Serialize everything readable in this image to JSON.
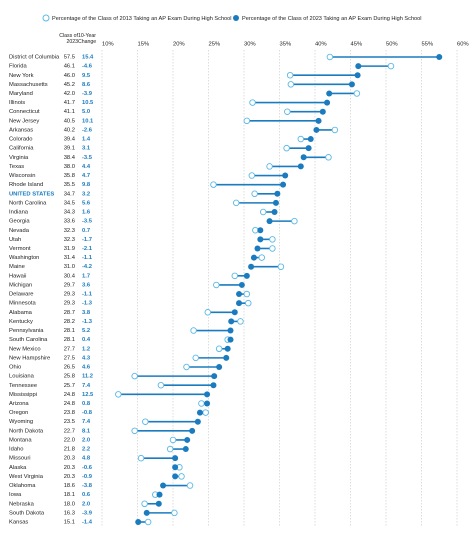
{
  "chart_data": {
    "type": "dumbbell",
    "column_headers": [
      "Class of 2023",
      "10-Year Change"
    ],
    "categories": [
      "District of Columbia",
      "Florida",
      "New York",
      "Massachusetts",
      "Maryland",
      "Illinois",
      "Connecticut",
      "New Jersey",
      "Arkansas",
      "Colorado",
      "California",
      "Virginia",
      "Texas",
      "Wisconsin",
      "Rhode Island",
      "UNITED STATES",
      "North Carolina",
      "Indiana",
      "Georgia",
      "Nevada",
      "Utah",
      "Vermont",
      "Washington",
      "Maine",
      "Hawaii",
      "Michigan",
      "Delaware",
      "Minnesota",
      "Alabama",
      "Kentucky",
      "Pennsylvania",
      "South Carolina",
      "New Mexico",
      "New Hampshire",
      "Ohio",
      "Louisiana",
      "Tennessee",
      "Mississippi",
      "Arizona",
      "Oregon",
      "Wyoming",
      "North Dakota",
      "Montana",
      "Idaho",
      "Missouri",
      "Alaska",
      "West Virginia",
      "Oklahoma",
      "Iowa",
      "Nebraska",
      "South Dakota",
      "Kansas"
    ],
    "highlight": "UNITED STATES",
    "series": [
      {
        "name": "Percentage of the Class of 2013 Taking an AP Exam During High School",
        "color": "#5bb8e6",
        "values": [
          42.1,
          50.7,
          36.5,
          36.6,
          45.9,
          31.2,
          36.1,
          30.4,
          42.8,
          38.0,
          36.0,
          41.9,
          33.6,
          31.1,
          25.7,
          31.5,
          28.9,
          32.7,
          37.1,
          31.6,
          34.0,
          34.0,
          32.5,
          35.2,
          28.7,
          26.1,
          30.4,
          30.6,
          24.9,
          29.5,
          22.9,
          27.7,
          26.5,
          23.2,
          21.9,
          14.6,
          18.3,
          12.3,
          24.0,
          24.6,
          16.1,
          14.6,
          20.0,
          19.6,
          15.5,
          20.9,
          21.2,
          22.4,
          17.5,
          16.0,
          20.2,
          16.5
        ]
      },
      {
        "name": "Percentage of the Class of 2023 Taking an AP Exam During High School",
        "color": "#1a7bbf",
        "values": [
          57.5,
          46.1,
          46.0,
          45.2,
          42.0,
          41.7,
          41.1,
          40.5,
          40.2,
          39.4,
          39.1,
          38.4,
          38.0,
          35.8,
          35.5,
          34.7,
          34.5,
          34.3,
          33.6,
          32.3,
          32.3,
          31.9,
          31.4,
          31.0,
          30.4,
          29.7,
          29.3,
          29.3,
          28.7,
          28.2,
          28.1,
          28.1,
          27.7,
          27.5,
          26.5,
          25.8,
          25.7,
          24.8,
          24.8,
          23.8,
          23.5,
          22.7,
          22.0,
          21.8,
          20.3,
          20.3,
          20.3,
          18.6,
          18.1,
          18.0,
          16.3,
          15.1
        ],
        "value_labels": [
          "57.5",
          "46.1",
          "46.0",
          "45.2",
          "42.0",
          "41.7",
          "41.1",
          "40.5",
          "40.2",
          "39.4",
          "39.1",
          "38.4",
          "38.0",
          "35.8",
          "35.5",
          "34.7",
          "34.5",
          "34.3",
          "33.6",
          "32.3",
          "32.3",
          "31.9",
          "31.4",
          "31.0",
          "30.4",
          "29.7",
          "29.3",
          "29.3",
          "28.7",
          "28.2",
          "28.1",
          "28.1",
          "27.7",
          "27.5",
          "26.5",
          "25.8",
          "25.7",
          "24.8",
          "24.8",
          "23.8",
          "23.5",
          "22.7",
          "22.0",
          "21.8",
          "20.3",
          "20.3",
          "20.3",
          "18.6",
          "18.1",
          "18.0",
          "16.3",
          "15.1"
        ]
      }
    ],
    "change": [
      15.4,
      -4.6,
      9.5,
      8.6,
      -3.9,
      10.5,
      5.0,
      10.1,
      -2.6,
      1.4,
      3.1,
      -3.5,
      4.4,
      4.7,
      9.8,
      3.2,
      5.6,
      1.6,
      -3.5,
      0.7,
      -1.7,
      -2.1,
      -1.1,
      -4.2,
      1.7,
      3.6,
      -1.1,
      -1.3,
      3.8,
      -1.3,
      5.2,
      0.4,
      1.2,
      4.3,
      4.6,
      11.2,
      7.4,
      12.5,
      0.8,
      -0.8,
      7.4,
      8.1,
      2.0,
      2.2,
      4.8,
      -0.6,
      -0.9,
      -3.8,
      0.6,
      2.0,
      -3.9,
      -1.4
    ],
    "change_labels": [
      "15.4",
      "-4.6",
      "9.5",
      "8.6",
      "-3.9",
      "10.5",
      "5.0",
      "10.1",
      "-2.6",
      "1.4",
      "3.1",
      "-3.5",
      "4.4",
      "4.7",
      "9.8",
      "3.2",
      "5.6",
      "1.6",
      "-3.5",
      "0.7",
      "-1.7",
      "-2.1",
      "-1.1",
      "-4.2",
      "1.7",
      "3.6",
      "-1.1",
      "-1.3",
      "3.8",
      "-1.3",
      "5.2",
      "0.4",
      "1.2",
      "4.3",
      "4.6",
      "11.2",
      "7.4",
      "12.5",
      "0.8",
      "-0.8",
      "7.4",
      "8.1",
      "2.0",
      "2.2",
      "4.8",
      "-0.6",
      "-0.9",
      "-3.8",
      "0.6",
      "2.0",
      "-3.9",
      "-1.4"
    ],
    "xlim": [
      10,
      60
    ],
    "xticks": [
      {
        "value": 10,
        "label": "10%"
      },
      {
        "value": 15,
        "label": "15%"
      },
      {
        "value": 20,
        "label": "20%"
      },
      {
        "value": 25,
        "label": "25%"
      },
      {
        "value": 30,
        "label": "30%"
      },
      {
        "value": 35,
        "label": "35%"
      },
      {
        "value": 40,
        "label": "40%"
      },
      {
        "value": 45,
        "label": "45%"
      },
      {
        "value": 50,
        "label": "50%"
      },
      {
        "value": 55,
        "label": "55%"
      },
      {
        "value": 60,
        "label": "60%"
      }
    ],
    "grid": true
  }
}
